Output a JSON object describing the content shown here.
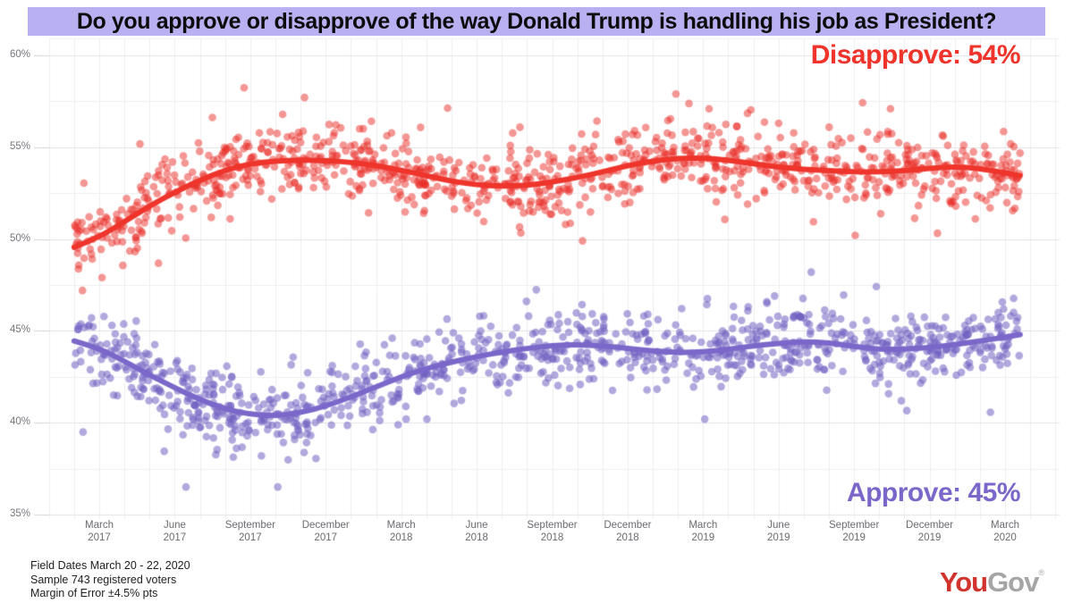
{
  "banner": {
    "title": "Do you approve or disapprove of the way Donald Trump is handling his job as President?"
  },
  "annotations": {
    "disapprove_label": "Disapprove: 54%",
    "approve_label": "Approve: 45%"
  },
  "footer": {
    "line1": "Field Dates March 20 - 22, 2020",
    "line2": "Sample 743 registered voters",
    "line3": "Margin of Error ±4.5% pts"
  },
  "logo": {
    "you": "You",
    "gov": "Gov",
    "reg": "®"
  },
  "colors": {
    "banner_bg": "#b9b0f1",
    "disapprove": "#ee342b",
    "approve": "#7b67c9",
    "disapprove_point": "rgba(234,45,40,0.5)",
    "approve_point": "rgba(113,97,193,0.55)",
    "grid_major": "#e2e2e7",
    "grid_minor": "#eeeef2",
    "tick": "#d5d5da",
    "y_label": "#76767c",
    "x_label": "#6b6b70",
    "logo_you": "#d0342c",
    "logo_gov": "#a5a5a5"
  },
  "chart_data": {
    "type": "scatter",
    "title": "Do you approve or disapprove of the way Donald Trump is handling his job as President?",
    "ylim": [
      35,
      60
    ],
    "y_tick_labels": [
      "60%",
      "55%",
      "50%",
      "45%",
      "40%",
      "35%"
    ],
    "y_tick_values": [
      60,
      55,
      50,
      45,
      40,
      35
    ],
    "y_minor_grid_step_pct": 2.5,
    "x_grid": "monthly",
    "x_tick_labels": [
      [
        "March",
        "2017"
      ],
      [
        "June",
        "2017"
      ],
      [
        "September",
        "2017"
      ],
      [
        "December",
        "2017"
      ],
      [
        "March",
        "2018"
      ],
      [
        "June",
        "2018"
      ],
      [
        "September",
        "2018"
      ],
      [
        "December",
        "2018"
      ],
      [
        "March",
        "2019"
      ],
      [
        "June",
        "2019"
      ],
      [
        "September",
        "2019"
      ],
      [
        "December",
        "2019"
      ],
      [
        "March",
        "2020"
      ]
    ],
    "x_tick_months_from_mar2017": [
      0,
      3,
      6,
      9,
      12,
      15,
      18,
      21,
      24,
      27,
      30,
      33,
      36
    ],
    "series": [
      {
        "name": "Disapprove",
        "final_value_pct": 54,
        "trend_pct_by_month": [
          [
            -1,
            49.55
          ],
          [
            0,
            50.1
          ],
          [
            1,
            50.95
          ],
          [
            2,
            51.8
          ],
          [
            3,
            52.55
          ],
          [
            4,
            53.2
          ],
          [
            5,
            53.75
          ],
          [
            6,
            54.1
          ],
          [
            7,
            54.25
          ],
          [
            8,
            54.3
          ],
          [
            9,
            54.28
          ],
          [
            10,
            54.18
          ],
          [
            11,
            54.0
          ],
          [
            12,
            53.75
          ],
          [
            13,
            53.45
          ],
          [
            14,
            53.15
          ],
          [
            15,
            52.95
          ],
          [
            16,
            52.88
          ],
          [
            17,
            52.92
          ],
          [
            18,
            53.1
          ],
          [
            19,
            53.35
          ],
          [
            20,
            53.65
          ],
          [
            21,
            54.0
          ],
          [
            22,
            54.25
          ],
          [
            23,
            54.4
          ],
          [
            24,
            54.42
          ],
          [
            25,
            54.3
          ],
          [
            26,
            54.1
          ],
          [
            27,
            53.92
          ],
          [
            28,
            53.8
          ],
          [
            29,
            53.72
          ],
          [
            30,
            53.65
          ],
          [
            31,
            53.65
          ],
          [
            32,
            53.72
          ],
          [
            33,
            53.85
          ],
          [
            34,
            53.95
          ],
          [
            35,
            53.85
          ],
          [
            36,
            53.6
          ],
          [
            36.6,
            53.45
          ]
        ]
      },
      {
        "name": "Approve",
        "final_value_pct": 45,
        "trend_pct_by_month": [
          [
            -1,
            44.45
          ],
          [
            0,
            44.05
          ],
          [
            1,
            43.35
          ],
          [
            2,
            42.6
          ],
          [
            3,
            41.9
          ],
          [
            4,
            41.25
          ],
          [
            5,
            40.75
          ],
          [
            6,
            40.45
          ],
          [
            7,
            40.38
          ],
          [
            8,
            40.55
          ],
          [
            9,
            40.9
          ],
          [
            10,
            41.4
          ],
          [
            11,
            41.95
          ],
          [
            12,
            42.5
          ],
          [
            13,
            42.95
          ],
          [
            14,
            43.3
          ],
          [
            15,
            43.6
          ],
          [
            16,
            43.85
          ],
          [
            17,
            44.05
          ],
          [
            18,
            44.2
          ],
          [
            19,
            44.25
          ],
          [
            20,
            44.18
          ],
          [
            21,
            44.05
          ],
          [
            22,
            43.9
          ],
          [
            23,
            43.82
          ],
          [
            24,
            43.85
          ],
          [
            25,
            44.0
          ],
          [
            26,
            44.18
          ],
          [
            27,
            44.32
          ],
          [
            28,
            44.42
          ],
          [
            29,
            44.35
          ],
          [
            30,
            44.15
          ],
          [
            31,
            44.0
          ],
          [
            32,
            44.0
          ],
          [
            33,
            44.1
          ],
          [
            34,
            44.25
          ],
          [
            35,
            44.45
          ],
          [
            36,
            44.65
          ],
          [
            36.6,
            44.8
          ]
        ]
      }
    ],
    "scatter_style": {
      "points_per_series": 1050,
      "seed": 20200322,
      "sigma_pct": 0.95,
      "tail_sigma_pct": 1.8,
      "tail_prob": 0.14,
      "point_radius_px": 4.3,
      "clamp_disapprove": [
        47.2,
        59.3
      ],
      "clamp_approve": [
        36.5,
        48.2
      ]
    }
  }
}
